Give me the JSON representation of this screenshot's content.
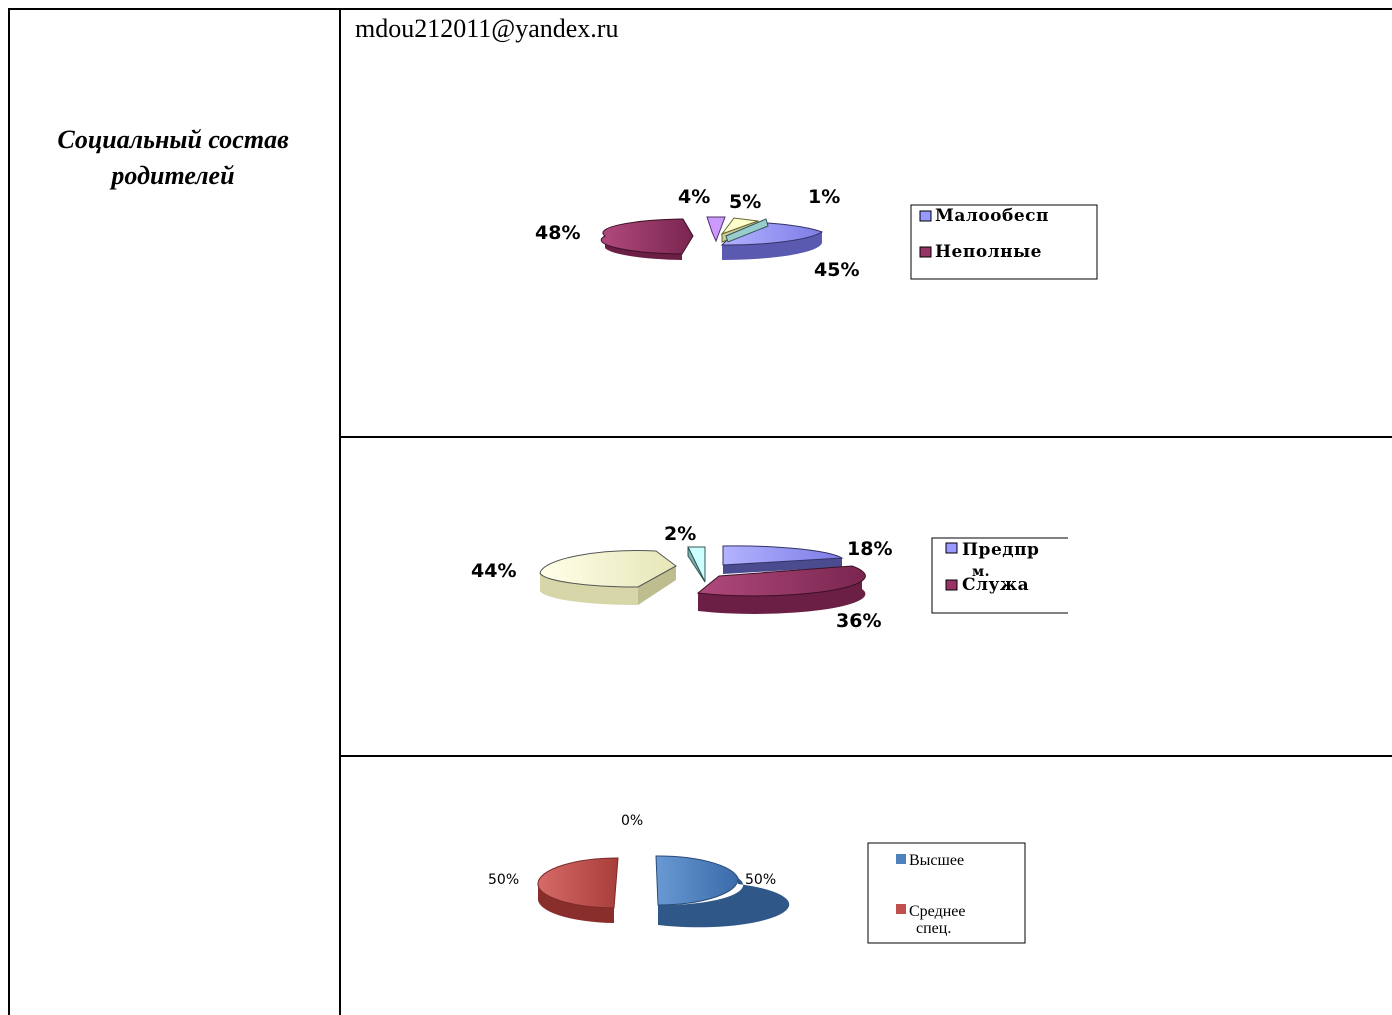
{
  "document": {
    "email": "mdou212011@yandex.ru",
    "left_label_line1": "Социальный состав",
    "left_label_line2": "родителей"
  },
  "chart_data": [
    {
      "type": "pie",
      "labels": [
        "45%",
        "48%",
        "4%",
        "5%",
        "1%"
      ],
      "values": [
        45,
        48,
        4,
        5,
        1
      ],
      "legend": [
        "Малообесп",
        "Неполные"
      ],
      "legend_position": "right",
      "colors": [
        "#9999ff",
        "#993366",
        "#cc99ff",
        "#ffffcc",
        "#ccffff"
      ]
    },
    {
      "type": "pie",
      "labels": [
        "18%",
        "36%",
        "44%",
        "2%"
      ],
      "values": [
        18,
        36,
        44,
        2
      ],
      "legend": [
        "Предпр",
        "м.",
        "Служа"
      ],
      "legend_position": "right",
      "colors": [
        "#9999ff",
        "#993366",
        "#ffffcc",
        "#ccffff"
      ]
    },
    {
      "type": "pie",
      "labels": [
        "50%",
        "50%",
        "0%"
      ],
      "values": [
        50,
        50,
        0
      ],
      "legend": [
        "Высшее",
        "Среднее",
        "спец."
      ],
      "legend_position": "right",
      "colors": [
        "#4f81bd",
        "#c0504d"
      ]
    }
  ]
}
